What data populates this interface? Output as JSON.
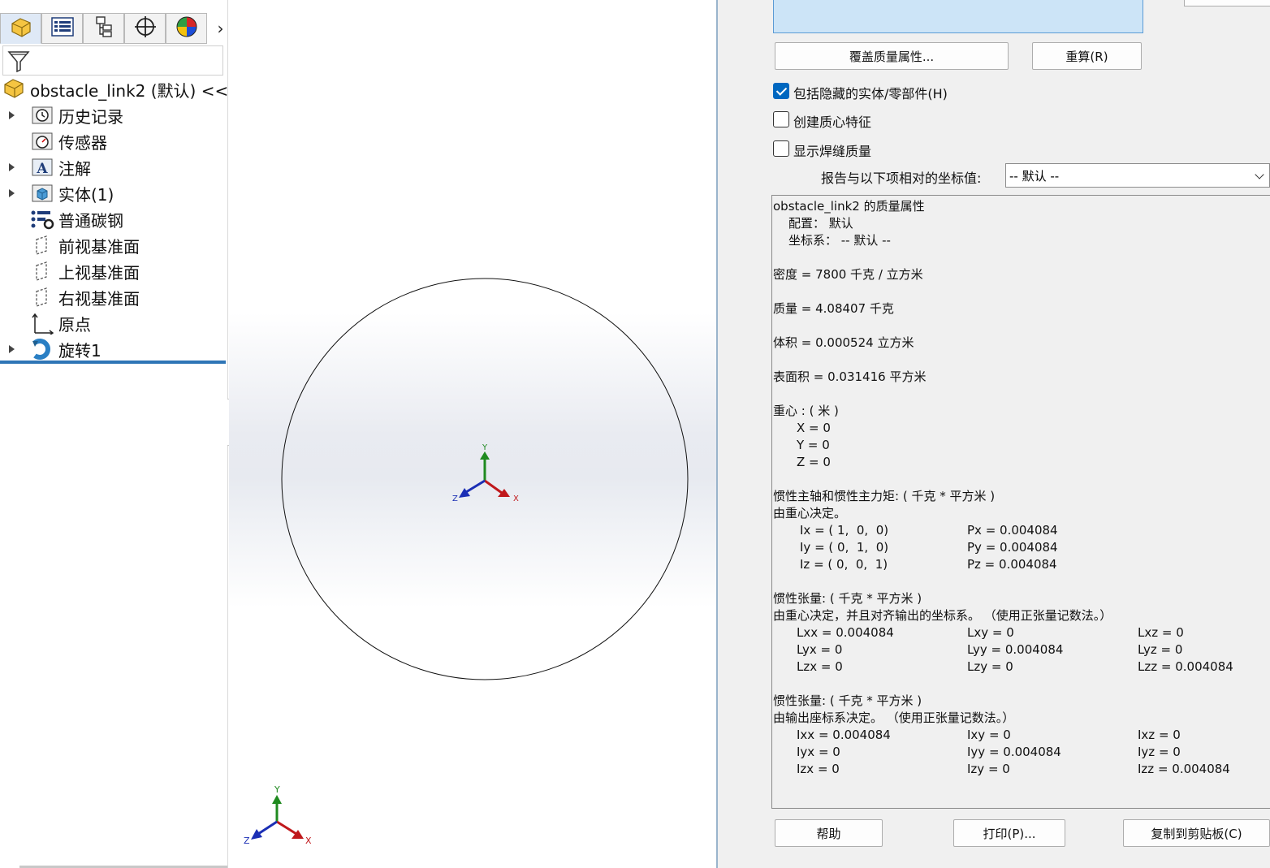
{
  "feature_manager": {
    "tabs": [
      "feature-manager-tab",
      "property-manager-tab",
      "configuration-manager-tab",
      "dimxpert-tab",
      "display-manager-tab"
    ],
    "more_label": "›",
    "root_label": "obstacle_link2 (默认) <<",
    "items": [
      {
        "label": "历史记录",
        "icon": "history-icon",
        "expandable": true
      },
      {
        "label": "传感器",
        "icon": "sensor-icon",
        "expandable": false
      },
      {
        "label": "注解",
        "icon": "annotation-icon",
        "expandable": true
      },
      {
        "label": "实体(1)",
        "icon": "solid-body-icon",
        "expandable": true
      },
      {
        "label": "普通碳钢",
        "icon": "material-icon",
        "expandable": false
      },
      {
        "label": "前视基准面",
        "icon": "plane-icon",
        "expandable": false
      },
      {
        "label": "上视基准面",
        "icon": "plane-icon",
        "expandable": false
      },
      {
        "label": "右视基准面",
        "icon": "plane-icon",
        "expandable": false
      },
      {
        "label": "原点",
        "icon": "origin-icon",
        "expandable": false
      },
      {
        "label": "旋转1",
        "icon": "revolve-icon",
        "expandable": true
      }
    ]
  },
  "graphics": {
    "triad_labels": {
      "x": "X",
      "y": "Y",
      "z": "Z"
    },
    "colors": {
      "x": "#c0191c",
      "y": "#1f8a1f",
      "z": "#1b2fb5"
    }
  },
  "dialog": {
    "override_button": "覆盖质量属性...",
    "recalc_button": "重算(R)",
    "include_hidden": {
      "label": "包括隐藏的实体/零部件(H)",
      "checked": true
    },
    "create_com": {
      "label": "创建质心特征",
      "checked": false
    },
    "show_weld": {
      "label": "显示焊缝质量",
      "checked": false
    },
    "coord_label": "报告与以下项相对的坐标值:",
    "coord_value": "-- 默认 --",
    "help_button": "帮助",
    "print_button": "打印(P)...",
    "copy_button": "复制到剪贴板(C)",
    "report": {
      "title": "obstacle_link2 的质量属性",
      "config": "配置： 默认",
      "coord_sys": "坐标系： -- 默认 --",
      "density": "密度 = 7800 千克 / 立方米",
      "mass": "质量 = 4.08407 千克",
      "volume": "体积 = 0.000524 立方米",
      "surface_area": "表面积 = 0.031416 平方米",
      "com_heading": "重心 : ( 米 )",
      "com_x": "X = 0",
      "com_y": "Y = 0",
      "com_z": "Z = 0",
      "principal_heading": "惯性主轴和惯性主力矩: ( 千克 * 平方米 )",
      "principal_sub": "由重心决定。",
      "ix": "Ix = ( 1,  0,  0)",
      "iy": "Iy = ( 0,  1,  0)",
      "iz": "Iz = ( 0,  0,  1)",
      "px": "Px = 0.004084",
      "py": "Py = 0.004084",
      "pz": "Pz = 0.004084",
      "tensor1_heading": "惯性张量: ( 千克 * 平方米 )",
      "tensor1_sub": "由重心决定，并且对齐输出的坐标系。 （使用正张量记数法。）",
      "lxx": "Lxx = 0.004084",
      "lxy": "Lxy = 0",
      "lxz": "Lxz = 0",
      "lyx": "Lyx = 0",
      "lyy": "Lyy = 0.004084",
      "lyz": "Lyz = 0",
      "lzx": "Lzx = 0",
      "lzy": "Lzy = 0",
      "lzz": "Lzz = 0.004084",
      "tensor2_heading": "惯性张量: ( 千克 * 平方米 )",
      "tensor2_sub": "由输出座标系决定。 （使用正张量记数法。）",
      "ixx": "Ixx = 0.004084",
      "ixy": "Ixy = 0",
      "ixz": "Ixz = 0",
      "iyx": "Iyx = 0",
      "iyy": "Iyy = 0.004084",
      "iyz": "Iyz = 0",
      "izx": "Izx = 0",
      "izy": "Izy = 0",
      "izz": "Izz = 0.004084"
    }
  }
}
